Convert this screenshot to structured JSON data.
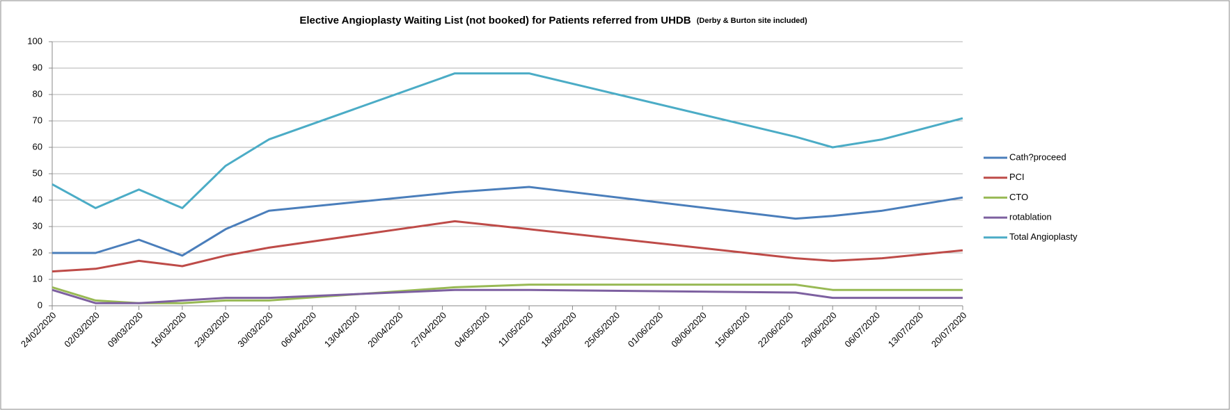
{
  "chart_data": {
    "type": "line",
    "title": "Elective Angioplasty Waiting List (not booked) for Patients referred from UHDB",
    "subtitle": "(Derby & Burton site included)",
    "x": [
      "24/02/2020",
      "02/03/2020",
      "09/03/2020",
      "16/03/2020",
      "23/03/2020",
      "30/03/2020",
      "29/04/2020",
      "11/05/2020",
      "23/06/2020",
      "29/06/2020",
      "07/07/2020",
      "20/07/2020"
    ],
    "series": [
      {
        "name": "Cath?proceed",
        "color": "#4a7ebb",
        "values": [
          20,
          20,
          25,
          19,
          29,
          36,
          43,
          45,
          33,
          34,
          36,
          41
        ]
      },
      {
        "name": "PCI",
        "color": "#be4b48",
        "values": [
          13,
          14,
          17,
          15,
          19,
          22,
          32,
          29,
          18,
          17,
          18,
          21
        ]
      },
      {
        "name": "CTO",
        "color": "#98b954",
        "values": [
          7,
          2,
          1,
          1,
          2,
          2,
          7,
          8,
          8,
          6,
          6,
          6
        ]
      },
      {
        "name": "rotablation",
        "color": "#7d60a0",
        "values": [
          6,
          1,
          1,
          2,
          3,
          3,
          6,
          6,
          5,
          3,
          3,
          3
        ]
      },
      {
        "name": "Total Angioplasty",
        "color": "#4bacc6",
        "values": [
          46,
          37,
          44,
          37,
          53,
          63,
          88,
          88,
          64,
          60,
          63,
          71
        ]
      }
    ],
    "xlim": [
      "24/02/2020",
      "20/07/2020"
    ],
    "xticks": [
      "24/02/2020",
      "02/03/2020",
      "09/03/2020",
      "16/03/2020",
      "23/03/2020",
      "30/03/2020",
      "06/04/2020",
      "13/04/2020",
      "20/04/2020",
      "27/04/2020",
      "04/05/2020",
      "11/05/2020",
      "18/05/2020",
      "25/05/2020",
      "01/06/2020",
      "08/06/2020",
      "15/06/2020",
      "22/06/2020",
      "29/06/2020",
      "06/07/2020",
      "13/07/2020",
      "20/07/2020"
    ],
    "ylim": [
      0,
      100
    ],
    "yticks": [
      0,
      10,
      20,
      30,
      40,
      50,
      60,
      70,
      80,
      90,
      100
    ],
    "grid": true,
    "legend": "right"
  }
}
